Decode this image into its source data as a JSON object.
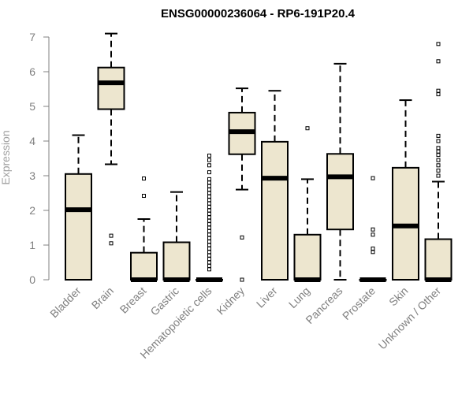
{
  "chart_data": {
    "type": "boxplot",
    "title": "ENSG00000236064 - RP6-191P20.4",
    "xlabel": "",
    "ylabel": "Expression",
    "ylim": [
      0,
      7.3
    ],
    "yticks": [
      0,
      1,
      2,
      3,
      4,
      5,
      6,
      7
    ],
    "grid": false,
    "box_color": "#ede6cf",
    "categories": [
      "Bladder",
      "Brain",
      "Breast",
      "Gastric",
      "Hematopoietic cells",
      "Kidney",
      "Liver",
      "Lung",
      "Pancreas",
      "Prostate",
      "Skin",
      "Unknown / Other"
    ],
    "boxes": [
      {
        "name": "Bladder",
        "whisker_low": 0,
        "q1": 0,
        "median": 2.02,
        "q3": 3.05,
        "whisker_high": 4.17,
        "outliers": []
      },
      {
        "name": "Brain",
        "whisker_low": 3.33,
        "q1": 4.92,
        "median": 5.68,
        "q3": 6.12,
        "whisker_high": 7.1,
        "outliers": [
          1.27,
          1.05
        ]
      },
      {
        "name": "Breast",
        "whisker_low": 0,
        "q1": 0,
        "median": 0,
        "q3": 0.78,
        "whisker_high": 1.75,
        "outliers": [
          2.42,
          2.92
        ]
      },
      {
        "name": "Gastric",
        "whisker_low": 0,
        "q1": 0,
        "median": 0,
        "q3": 1.08,
        "whisker_high": 2.53,
        "outliers": []
      },
      {
        "name": "Hematopoietic cells",
        "whisker_low": 0,
        "q1": 0,
        "median": 0,
        "q3": 0,
        "whisker_high": 0,
        "outliers": [
          0.3,
          0.4,
          0.5,
          0.6,
          0.7,
          0.8,
          0.9,
          1.0,
          1.1,
          1.2,
          1.3,
          1.4,
          1.5,
          1.6,
          1.7,
          1.8,
          1.9,
          2.0,
          2.1,
          2.2,
          2.3,
          2.4,
          2.5,
          2.6,
          2.7,
          2.8,
          2.9,
          3.1,
          3.3,
          3.45,
          3.58
        ]
      },
      {
        "name": "Kidney",
        "whisker_low": 2.6,
        "q1": 3.62,
        "median": 4.27,
        "q3": 4.82,
        "whisker_high": 5.52,
        "outliers": [
          1.22,
          0
        ]
      },
      {
        "name": "Liver",
        "whisker_low": 0,
        "q1": 0,
        "median": 2.93,
        "q3": 3.98,
        "whisker_high": 5.45,
        "outliers": []
      },
      {
        "name": "Lung",
        "whisker_low": 0,
        "q1": 0,
        "median": 0,
        "q3": 1.3,
        "whisker_high": 2.9,
        "outliers": [
          4.37
        ]
      },
      {
        "name": "Pancreas",
        "whisker_low": 0,
        "q1": 1.45,
        "median": 2.97,
        "q3": 3.63,
        "whisker_high": 6.23,
        "outliers": []
      },
      {
        "name": "Prostate",
        "whisker_low": 0,
        "q1": 0,
        "median": 0,
        "q3": 0,
        "whisker_high": 0,
        "outliers": [
          0.8,
          0.9,
          1.3,
          1.45,
          2.93
        ]
      },
      {
        "name": "Skin",
        "whisker_low": 0,
        "q1": 0,
        "median": 1.55,
        "q3": 3.23,
        "whisker_high": 5.18,
        "outliers": []
      },
      {
        "name": "Unknown / Other",
        "whisker_low": 0,
        "q1": 0,
        "median": 0,
        "q3": 1.17,
        "whisker_high": 2.83,
        "outliers": [
          3.0,
          3.15,
          3.3,
          3.45,
          3.6,
          3.7,
          3.8,
          4.0,
          4.15,
          5.35,
          5.45,
          6.3,
          6.8
        ]
      }
    ]
  }
}
